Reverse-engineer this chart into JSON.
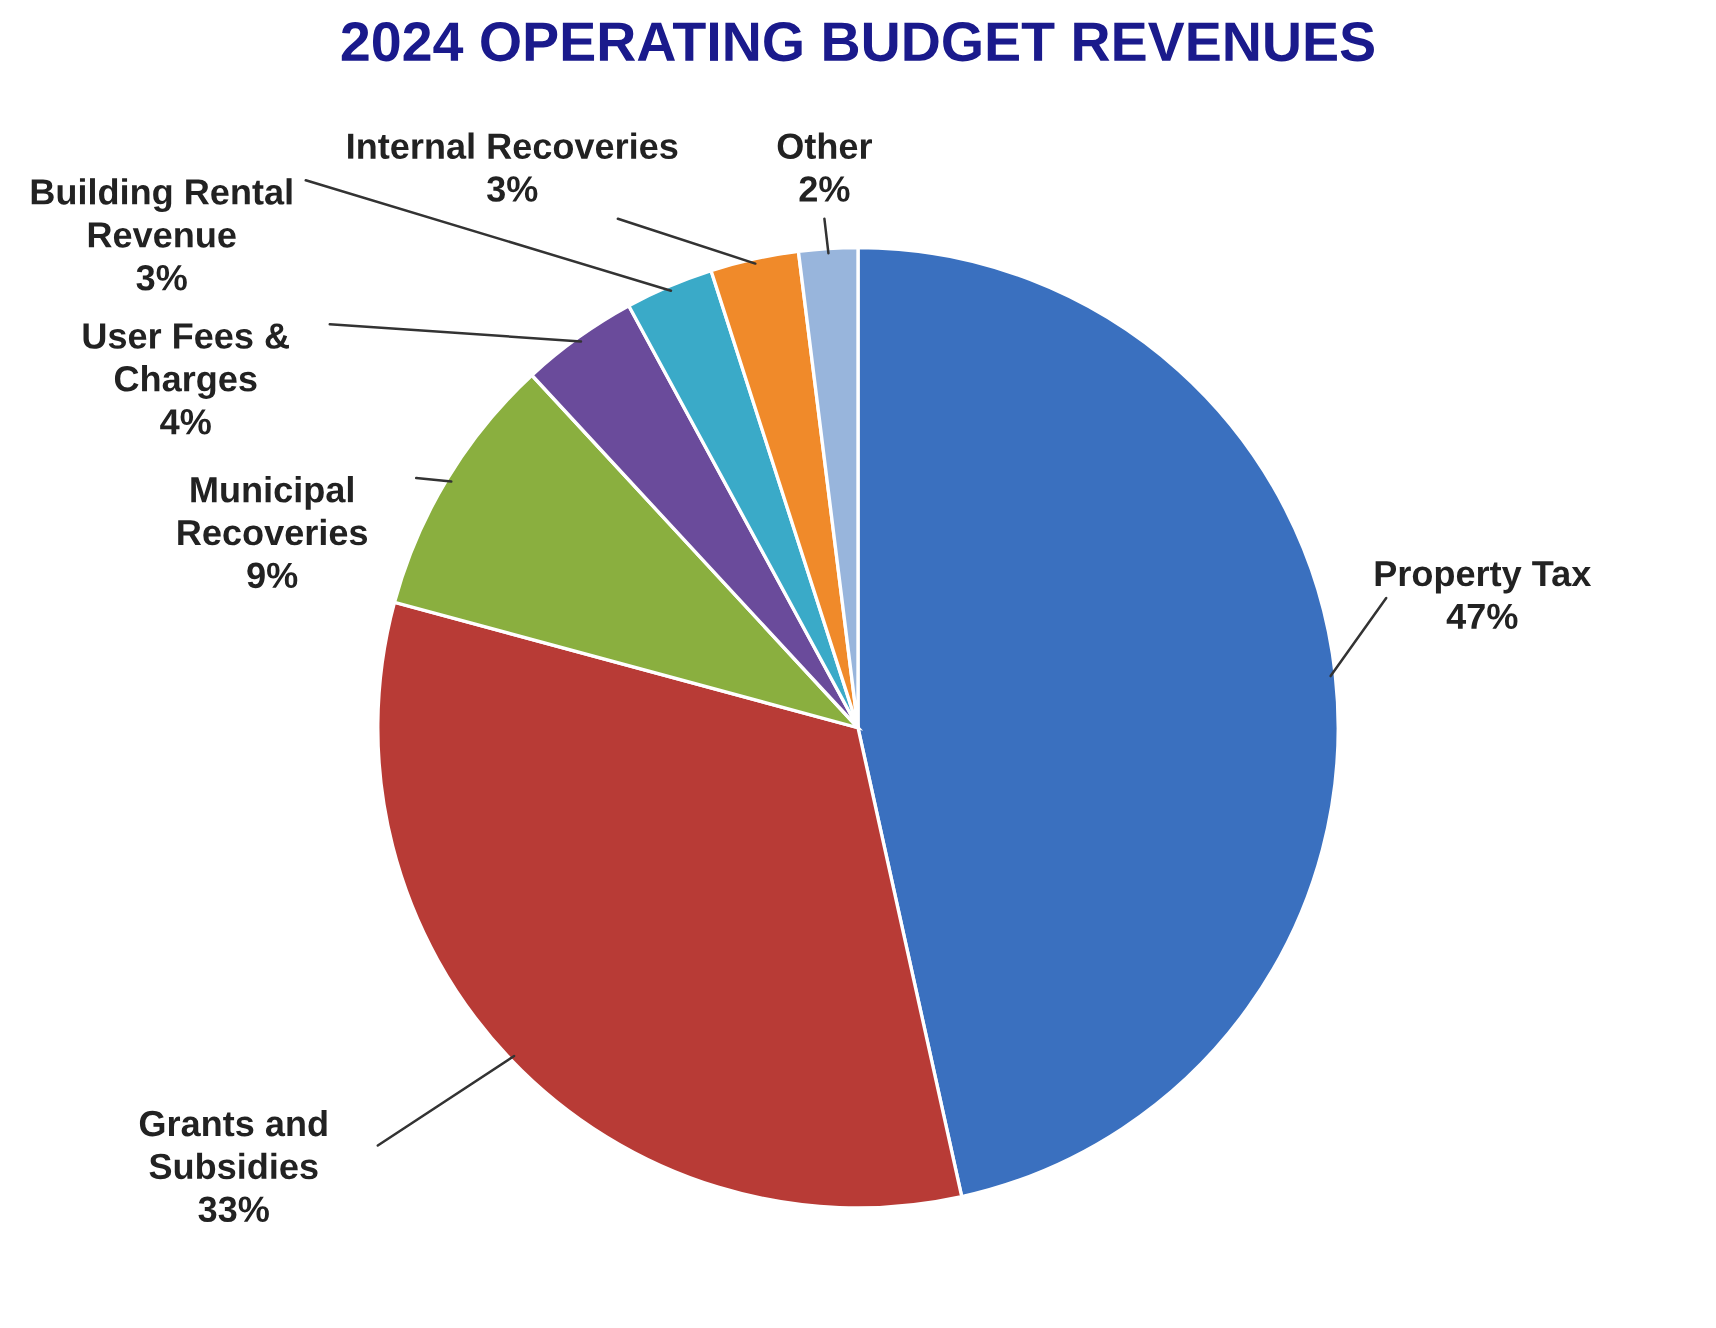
{
  "chart_data": {
    "type": "pie",
    "title": "2024 OPERATING BUDGET REVENUES",
    "categories": [
      "Property Tax",
      "Grants and\nSubsidies",
      "Municipal\nRecoveries",
      "User Fees &\nCharges",
      "Building Rental\nRevenue",
      "Internal Recoveries",
      "Other"
    ],
    "values": [
      47,
      33,
      9,
      4,
      3,
      3,
      2
    ],
    "value_labels": [
      "47%",
      "33%",
      "9%",
      "4%",
      "3%",
      "3%",
      "2%"
    ],
    "colors": [
      "#3a70bf",
      "#b83b36",
      "#8aaf3f",
      "#6a4b9b",
      "#3aaac8",
      "#f08a2a",
      "#98b5dc"
    ],
    "legend": false
  }
}
